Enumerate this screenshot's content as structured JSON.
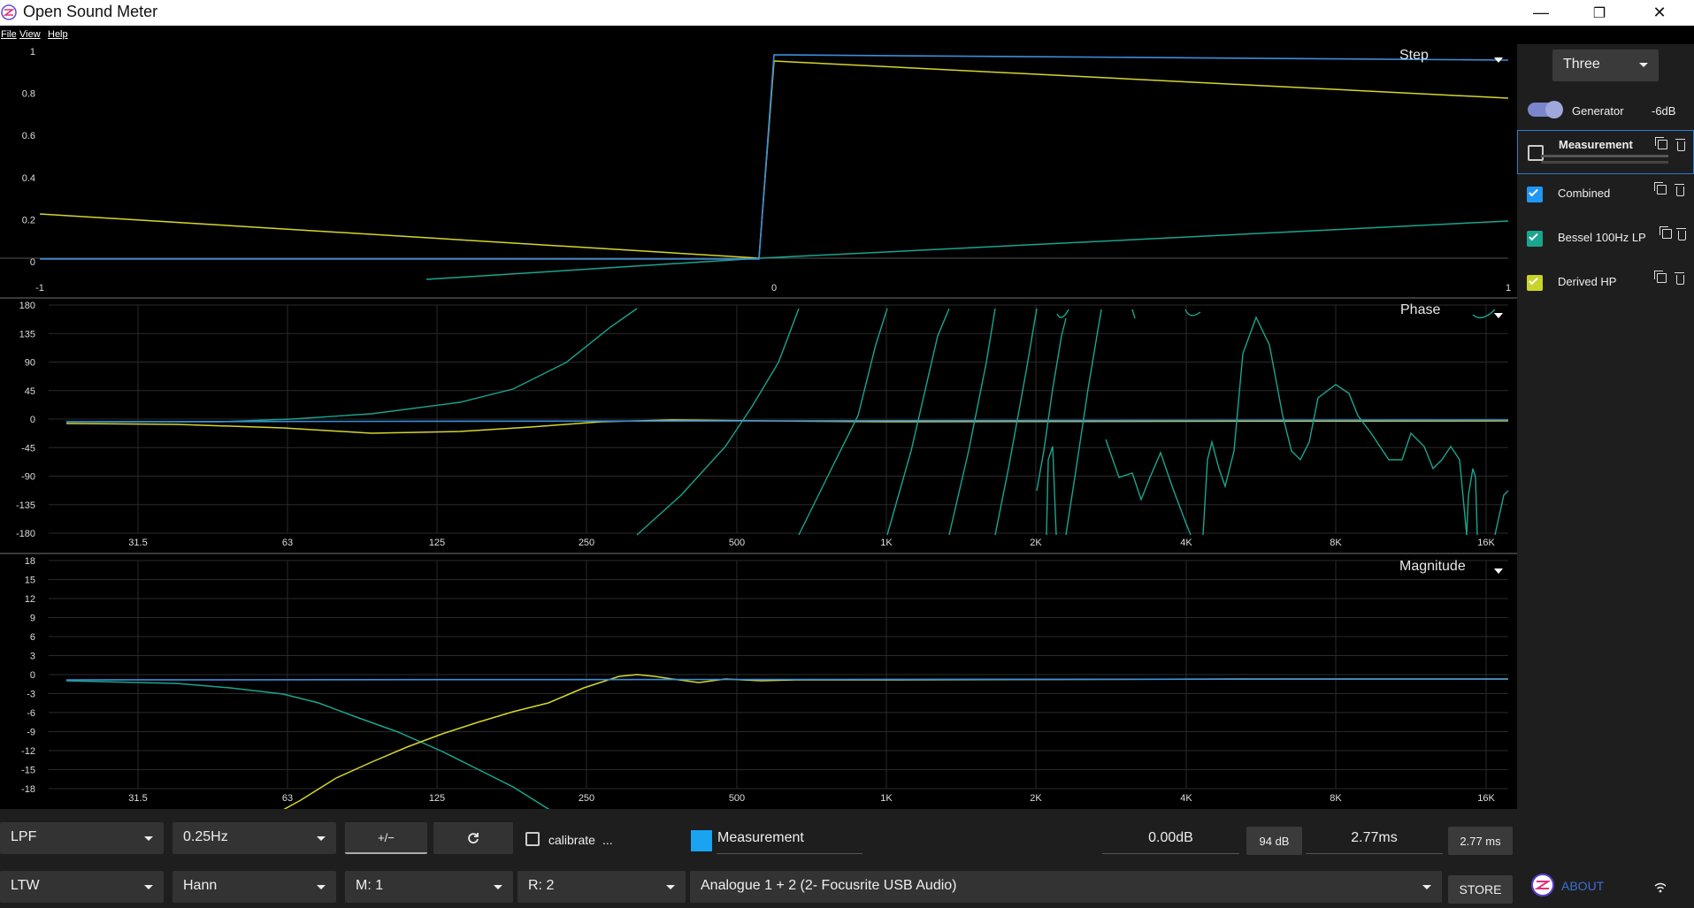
{
  "window": {
    "title": "Open Sound Meter",
    "minimize": "—",
    "restore": "❐",
    "close": "✕"
  },
  "menu": {
    "file": "File",
    "view": "View",
    "help": "Help"
  },
  "colors": {
    "measurement": "#2b9be8",
    "combined": "#4a90e2",
    "bessel": "#1aa58f",
    "derived": "#d6d62c"
  },
  "plots": {
    "step": {
      "title": "Step",
      "y_ticks": [
        "1",
        "0.8",
        "0.6",
        "0.4",
        "0.2",
        "0"
      ],
      "x_ticks": [
        "-1",
        "0",
        "1"
      ]
    },
    "phase": {
      "title": "Phase",
      "y_ticks": [
        "180",
        "135",
        "90",
        "45",
        "0",
        "-45",
        "-90",
        "-135",
        "-180"
      ],
      "x_ticks": [
        "31.5",
        "63",
        "125",
        "250",
        "500",
        "1K",
        "2K",
        "4K",
        "8K",
        "16K"
      ]
    },
    "magnitude": {
      "title": "Magnitude",
      "y_ticks": [
        "18",
        "15",
        "12",
        "9",
        "6",
        "3",
        "0",
        "-3",
        "-6",
        "-9",
        "-12",
        "-15",
        "-18"
      ],
      "x_ticks": [
        "31.5",
        "63",
        "125",
        "250",
        "500",
        "1K",
        "2K",
        "4K",
        "8K",
        "16K"
      ]
    }
  },
  "sidebar": {
    "preset": "Three",
    "generator_label": "Generator",
    "generator_level": "-6dB",
    "generator_on": true,
    "sources": [
      {
        "name": "Measurement",
        "checked": false,
        "color": "#2b9be8",
        "selected": true
      },
      {
        "name": "Combined",
        "checked": true,
        "color": "#2196f3"
      },
      {
        "name": "Bessel 100Hz LP",
        "checked": true,
        "color": "#1aa58f"
      },
      {
        "name": "Derived HP",
        "checked": true,
        "color": "#c8d42a"
      }
    ]
  },
  "controls": {
    "filter_type": "LPF",
    "filter_freq": "0.25Hz",
    "polarity": "+/−",
    "refresh_icon": "refresh-icon",
    "calibrate": "calibrate",
    "calibrate_more": "...",
    "source_name": "Measurement",
    "gain": "0.00dB",
    "level_button": "94 dB",
    "delay": "2.77ms",
    "delay_button": "2.77 ms",
    "average": "LTW",
    "window": "Hann",
    "measure_ch": "M: 1",
    "reference_ch": "R: 2",
    "device": "Analogue 1 + 2 (2- Focusrite USB Audio)",
    "store": "STORE",
    "about": "ABOUT",
    "wifi_icon": "wifi-icon"
  }
}
